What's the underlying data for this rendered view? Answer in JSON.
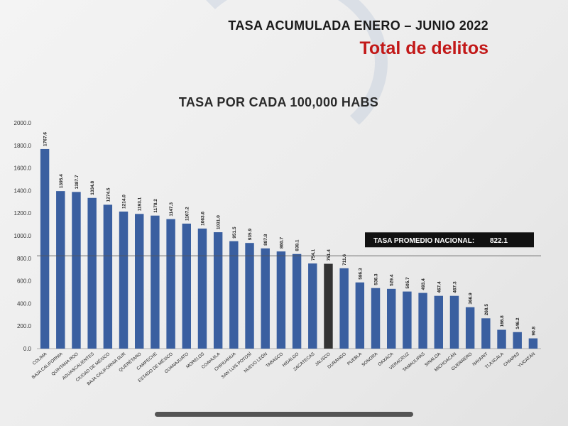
{
  "header": {
    "title": "TASA ACUMULADA ENERO – JUNIO 2022",
    "subtitle": "Total de delitos"
  },
  "colors": {
    "bar": "#3a5fa0",
    "bar_highlight": "#333333",
    "avg_line": "#555555",
    "callout_bg": "#111111",
    "callout_text": "#ffffff"
  },
  "chart_data": {
    "type": "bar",
    "title": "TASA POR CADA 100,000 HABS",
    "xlabel": "",
    "ylabel": "",
    "ylim": [
      0,
      2000
    ],
    "yticks": [
      "0.0",
      "200.0",
      "400.0",
      "600.0",
      "800.0",
      "1000.0",
      "1200.0",
      "1400.0",
      "1600.0",
      "1800.0",
      "2000.0"
    ],
    "grid": false,
    "categories": [
      "COLIMA",
      "BAJA CALIFORNIA",
      "QUINTANA ROO",
      "AGUASCALIENTES",
      "CIUDAD DE MÉXICO",
      "BAJA CALIFORNIA SUR",
      "QUERÉTARO",
      "CAMPECHE",
      "ESTADO DE MÉXICO",
      "GUANAJUATO",
      "MORELOS",
      "COAHUILA",
      "CHIHUAHUA",
      "SAN LUIS POTOSÍ",
      "NUEVO LEÓN",
      "TABASCO",
      "HIDALGO",
      "ZACATECAS",
      "JALISCO",
      "DURANGO",
      "PUEBLA",
      "SONORA",
      "OAXACA",
      "VERACRUZ",
      "TAMAULIPAS",
      "SINALOA",
      "MICHOACÁN",
      "GUERRERO",
      "NAYARIT",
      "TLAXCALA",
      "CHIAPAS",
      "YUCATÁN"
    ],
    "values": [
      1767.6,
      1395.4,
      1387.7,
      1334.8,
      1274.5,
      1214.0,
      1193.1,
      1178.2,
      1147.3,
      1107.2,
      1063.6,
      1031.0,
      951.5,
      935.9,
      887.8,
      860.7,
      838.1,
      754.1,
      751.4,
      711.6,
      586.3,
      536.3,
      529.4,
      505.7,
      493.4,
      467.4,
      467.3,
      366.9,
      268.5,
      166.8,
      146.2,
      90.8
    ],
    "value_labels": [
      "1767.6",
      "1395.4",
      "1387.7",
      "1334.8",
      "1274.5",
      "1214.0",
      "1193.1",
      "1178.2",
      "1147.3",
      "1107.2",
      "1063.6",
      "1031.0",
      "951.5",
      "935.9",
      "887.8",
      "860.7",
      "838.1",
      "754.1",
      "751.4",
      "711.6",
      "586.3",
      "536.3",
      "529.4",
      "505.7",
      "493.4",
      "467.4",
      "467.3",
      "366.9",
      "268.5",
      "166.8",
      "146.2",
      "90.8"
    ],
    "highlight_index": 18,
    "average": {
      "label": "TASA PROMEDIO NACIONAL:",
      "value": 822.1,
      "value_label": "822.1"
    }
  }
}
